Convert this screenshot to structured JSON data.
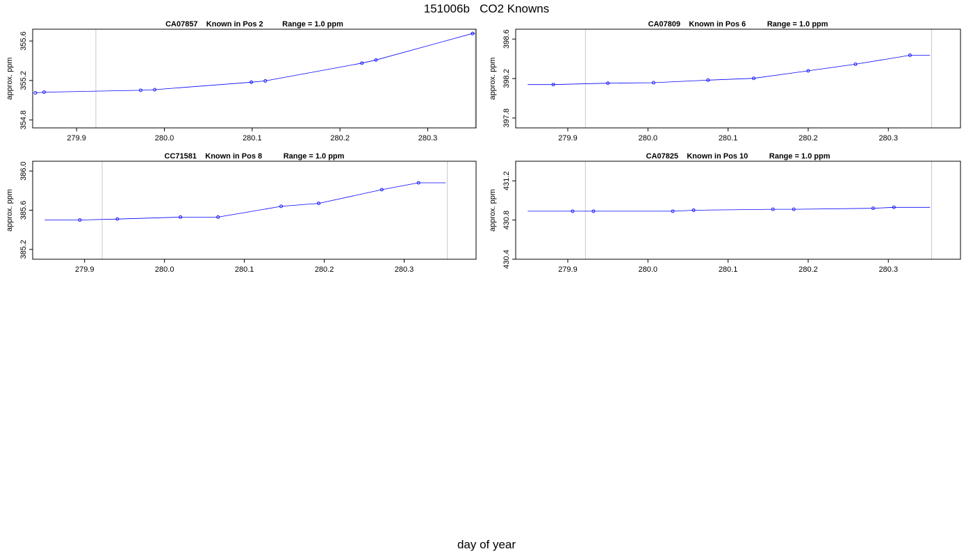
{
  "title": "151006b   CO2 Knowns",
  "xlabel": "day of year",
  "chart_data": [
    {
      "type": "line",
      "title": "CA07857    Known in Pos 2         Range = 1.0 ppm",
      "ylabel": "approx. ppm",
      "xlim": [
        279.85,
        280.355
      ],
      "ylim": [
        354.72,
        355.72
      ],
      "x_ticks": [
        "279.9",
        "280.0",
        "280.1",
        "280.2",
        "280.3"
      ],
      "y_ticks": [
        "354.8",
        "355.2",
        "355.6"
      ],
      "reference_lines_x": [
        279.922,
        280.354
      ],
      "series": [
        {
          "x": [
            279.853,
            279.863,
            279.973,
            279.989,
            280.099,
            280.115,
            280.225,
            280.241,
            280.351,
            280.354
          ],
          "y": [
            355.075,
            355.082,
            355.101,
            355.107,
            355.183,
            355.196,
            355.376,
            355.408,
            355.676,
            355.676
          ],
          "point_x": [
            279.853,
            279.863,
            279.973,
            279.989,
            280.099,
            280.115,
            280.225,
            280.241,
            280.351
          ],
          "point_y": [
            355.075,
            355.082,
            355.101,
            355.107,
            355.183,
            355.196,
            355.376,
            355.408,
            355.676
          ]
        }
      ]
    },
    {
      "type": "line",
      "title": "CA07809    Known in Pos 6          Range = 1.0 ppm",
      "ylabel": "approx. ppm",
      "xlim": [
        279.835,
        280.39
      ],
      "ylim": [
        397.7,
        398.7
      ],
      "x_ticks": [
        "279.9",
        "280.0",
        "280.1",
        "280.2",
        "280.3"
      ],
      "y_ticks": [
        "397.8",
        "398.2",
        "398.6"
      ],
      "reference_lines_x": [
        279.922,
        280.354
      ],
      "series": [
        {
          "x": [
            279.85,
            279.882,
            279.95,
            280.007,
            280.075,
            280.132,
            280.2,
            280.259,
            280.327,
            280.352
          ],
          "y": [
            398.139,
            398.139,
            398.153,
            398.158,
            398.184,
            398.202,
            398.278,
            398.345,
            398.436,
            398.436
          ],
          "point_x": [
            279.882,
            279.95,
            280.007,
            280.075,
            280.132,
            280.2,
            280.259,
            280.327
          ],
          "point_y": [
            398.139,
            398.153,
            398.158,
            398.184,
            398.202,
            398.278,
            398.345,
            398.436
          ]
        }
      ]
    },
    {
      "type": "line",
      "title": "CC71581    Known in Pos 8          Range = 1.0 ppm",
      "ylabel": "approx. ppm",
      "xlim": [
        279.835,
        280.39
      ],
      "ylim": [
        385.1,
        386.1
      ],
      "x_ticks": [
        "279.9",
        "280.0",
        "280.1",
        "280.2",
        "280.3"
      ],
      "y_ticks": [
        "385.2",
        "385.6",
        "386.0"
      ],
      "reference_lines_x": [
        279.922,
        280.354
      ],
      "series": [
        {
          "x": [
            279.85,
            279.894,
            279.941,
            280.02,
            280.067,
            280.146,
            280.193,
            280.272,
            280.318,
            280.352
          ],
          "y": [
            385.5,
            385.5,
            385.51,
            385.53,
            385.53,
            385.64,
            385.67,
            385.81,
            385.88,
            385.88
          ],
          "point_x": [
            279.894,
            279.941,
            280.02,
            280.067,
            280.146,
            280.193,
            280.272,
            280.318
          ],
          "point_y": [
            385.5,
            385.51,
            385.53,
            385.53,
            385.64,
            385.67,
            385.81,
            385.88
          ]
        }
      ]
    },
    {
      "type": "line",
      "title": "CA07825    Known in Pos 10          Range = 1.0 ppm",
      "ylabel": "approx. ppm",
      "xlim": [
        279.835,
        280.39
      ],
      "ylim": [
        430.4,
        431.4
      ],
      "x_ticks": [
        "279.9",
        "280.0",
        "280.1",
        "280.2",
        "280.3"
      ],
      "y_ticks": [
        "430.4",
        "430.8",
        "431.2"
      ],
      "reference_lines_x": [
        279.922,
        280.354
      ],
      "series": [
        {
          "x": [
            279.85,
            279.906,
            279.932,
            280.031,
            280.057,
            280.156,
            280.182,
            280.281,
            280.307,
            280.352
          ],
          "y": [
            430.89,
            430.89,
            430.89,
            430.89,
            430.9,
            430.91,
            430.91,
            430.92,
            430.93,
            430.93
          ],
          "point_x": [
            279.906,
            279.932,
            280.031,
            280.057,
            280.156,
            280.182,
            280.281,
            280.307
          ],
          "point_y": [
            430.89,
            430.89,
            430.89,
            430.9,
            430.91,
            430.91,
            430.92,
            430.93
          ]
        }
      ]
    }
  ]
}
